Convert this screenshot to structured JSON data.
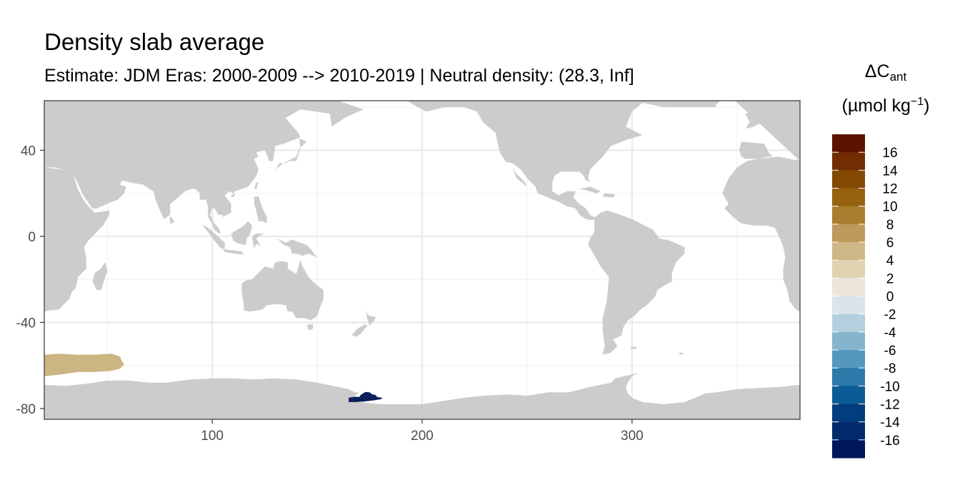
{
  "chart_data": {
    "type": "heatmap",
    "title": "Density slab average",
    "subtitle": "Estimate: JDM Eras: 2000-2009 --> 2010-2019 | Neutral density: (28.3, Inf]",
    "xlabel": "",
    "ylabel": "",
    "xlim": [
      20,
      380
    ],
    "ylim": [
      -85,
      63
    ],
    "x_ticks": [
      100,
      200,
      300
    ],
    "y_ticks": [
      40,
      0,
      -40,
      -80
    ],
    "x_tick_labels": [
      "100",
      "200",
      "300"
    ],
    "y_tick_labels": [
      "40",
      "0",
      "-40",
      "-80"
    ],
    "grid": true,
    "legend": {
      "title_base": "ΔC",
      "title_sub": "ant",
      "unit_pre": "(µmol kg",
      "unit_sup": "−1",
      "unit_post": ")",
      "placement": "right",
      "labels": [
        "16",
        "14",
        "12",
        "10",
        "8",
        "6",
        "4",
        "2",
        "0",
        "-2",
        "-4",
        "-6",
        "-8",
        "-10",
        "-12",
        "-14",
        "-16"
      ],
      "colors": [
        "#5c1300",
        "#732d02",
        "#834a04",
        "#95630f",
        "#a97e2e",
        "#bc9a5c",
        "#cfb787",
        "#e1d2b1",
        "#ece6da",
        "#d9e5ea",
        "#b3d0df",
        "#86b4ce",
        "#5598bd",
        "#2c7aaa",
        "#0b5c96",
        "#023e7e",
        "#022a6d",
        "#01175b"
      ]
    },
    "land_color": "#cccccc",
    "ocean_color": "#ffffff",
    "data_patches": [
      {
        "region": "south-atlantic-indian (lon 20-58, lat -55 to -65)",
        "value": 5,
        "color": "#cbb583",
        "outline": [
          [
            20,
            -55
          ],
          [
            27,
            -54.5
          ],
          [
            36,
            -55
          ],
          [
            44,
            -55
          ],
          [
            52,
            -54.5
          ],
          [
            56,
            -55.8
          ],
          [
            57,
            -58
          ],
          [
            58,
            -59.5
          ],
          [
            56,
            -61.5
          ],
          [
            52,
            -62.5
          ],
          [
            44,
            -63
          ],
          [
            36,
            -63
          ],
          [
            28,
            -64.2
          ],
          [
            20,
            -65
          ]
        ]
      },
      {
        "region": "ross-sea (lon 165-181, lat -72 to -77)",
        "value": -16,
        "color": "#0b1f5a",
        "outline": [
          [
            165,
            -75
          ],
          [
            168,
            -74.5
          ],
          [
            170,
            -74.6
          ],
          [
            171,
            -73.5
          ],
          [
            173,
            -72.3
          ],
          [
            175,
            -72.5
          ],
          [
            176,
            -73.3
          ],
          [
            178,
            -73.8
          ],
          [
            178.5,
            -74.6
          ],
          [
            181,
            -75
          ],
          [
            180.5,
            -75.6
          ],
          [
            177,
            -76.2
          ],
          [
            172,
            -76.8
          ],
          [
            168,
            -77
          ],
          [
            165,
            -77
          ]
        ]
      }
    ]
  }
}
